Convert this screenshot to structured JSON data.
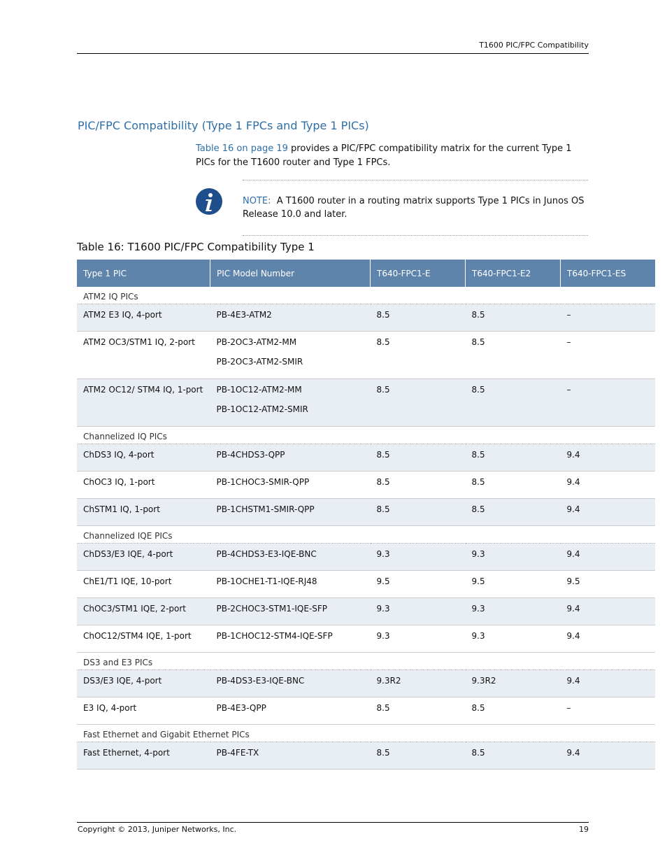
{
  "header": {
    "title": "T1600 PIC/FPC Compatibility"
  },
  "section": {
    "title": "PIC/FPC Compatibility (Type 1 FPCs and Type 1 PICs)",
    "intro": {
      "link": "Table 16 on page 19",
      "text": " provides a PIC/FPC compatibility matrix for the current Type 1 PICs for the T1600 router and Type 1 FPCs."
    },
    "note": {
      "label": "NOTE:",
      "text": "A T1600 router in a routing matrix supports Type 1 PICs in Junos OS Release 10.0 and later."
    }
  },
  "table": {
    "caption": "Table 16: T1600 PIC/FPC Compatibility Type 1",
    "columns": [
      "Type 1 PIC",
      "PIC Model Number",
      "T640-FPC1-E",
      "T640-FPC1-E2",
      "T640-FPC1-ES"
    ],
    "groups": [
      {
        "name": "ATM2 IQ PICs",
        "rows": [
          [
            "ATM2 E3 IQ, 4-port",
            [
              "PB-4E3-ATM2"
            ],
            "8.5",
            "8.5",
            "–"
          ],
          [
            "ATM2 OC3/STM1 IQ, 2-port",
            [
              "PB-2OC3-ATM2-MM",
              "PB-2OC3-ATM2-SMIR"
            ],
            "8.5",
            "8.5",
            "–"
          ],
          [
            "ATM2 OC12/ STM4 IQ, 1-port",
            [
              "PB-1OC12-ATM2-MM",
              "PB-1OC12-ATM2-SMIR"
            ],
            "8.5",
            "8.5",
            "–"
          ]
        ]
      },
      {
        "name": "Channelized IQ PICs",
        "rows": [
          [
            "ChDS3 IQ, 4-port",
            [
              "PB-4CHDS3-QPP"
            ],
            "8.5",
            "8.5",
            "9.4"
          ],
          [
            "ChOC3 IQ, 1-port",
            [
              "PB-1CHOC3-SMIR-QPP"
            ],
            "8.5",
            "8.5",
            "9.4"
          ],
          [
            "ChSTM1 IQ, 1-port",
            [
              "PB-1CHSTM1-SMIR-QPP"
            ],
            "8.5",
            "8.5",
            "9.4"
          ]
        ]
      },
      {
        "name": "Channelized IQE PICs",
        "rows": [
          [
            "ChDS3/E3 IQE, 4-port",
            [
              "PB-4CHDS3-E3-IQE-BNC"
            ],
            "9.3",
            "9.3",
            "9.4"
          ],
          [
            "ChE1/T1 IQE, 10-port",
            [
              "PB-1OCHE1-T1-IQE-RJ48"
            ],
            "9.5",
            "9.5",
            "9.5"
          ],
          [
            "ChOC3/STM1 IQE, 2-port",
            [
              "PB-2CHOC3-STM1-IQE-SFP"
            ],
            "9.3",
            "9.3",
            "9.4"
          ],
          [
            "ChOC12/STM4 IQE, 1-port",
            [
              "PB-1CHOC12-STM4-IQE-SFP"
            ],
            "9.3",
            "9.3",
            "9.4"
          ]
        ]
      },
      {
        "name": "DS3 and E3 PICs",
        "rows": [
          [
            "DS3/E3 IQE, 4-port",
            [
              "PB-4DS3-E3-IQE-BNC"
            ],
            "9.3R2",
            "9.3R2",
            "9.4"
          ],
          [
            "E3 IQ, 4-port",
            [
              "PB-4E3-QPP"
            ],
            "8.5",
            "8.5",
            "–"
          ]
        ]
      },
      {
        "name": "Fast Ethernet and Gigabit Ethernet PICs",
        "rows": [
          [
            "Fast Ethernet, 4-port",
            [
              "PB-4FE-TX"
            ],
            "8.5",
            "8.5",
            "9.4"
          ]
        ]
      }
    ]
  },
  "footer": {
    "copyright": "Copyright © 2013, Juniper Networks, Inc.",
    "page": "19"
  }
}
